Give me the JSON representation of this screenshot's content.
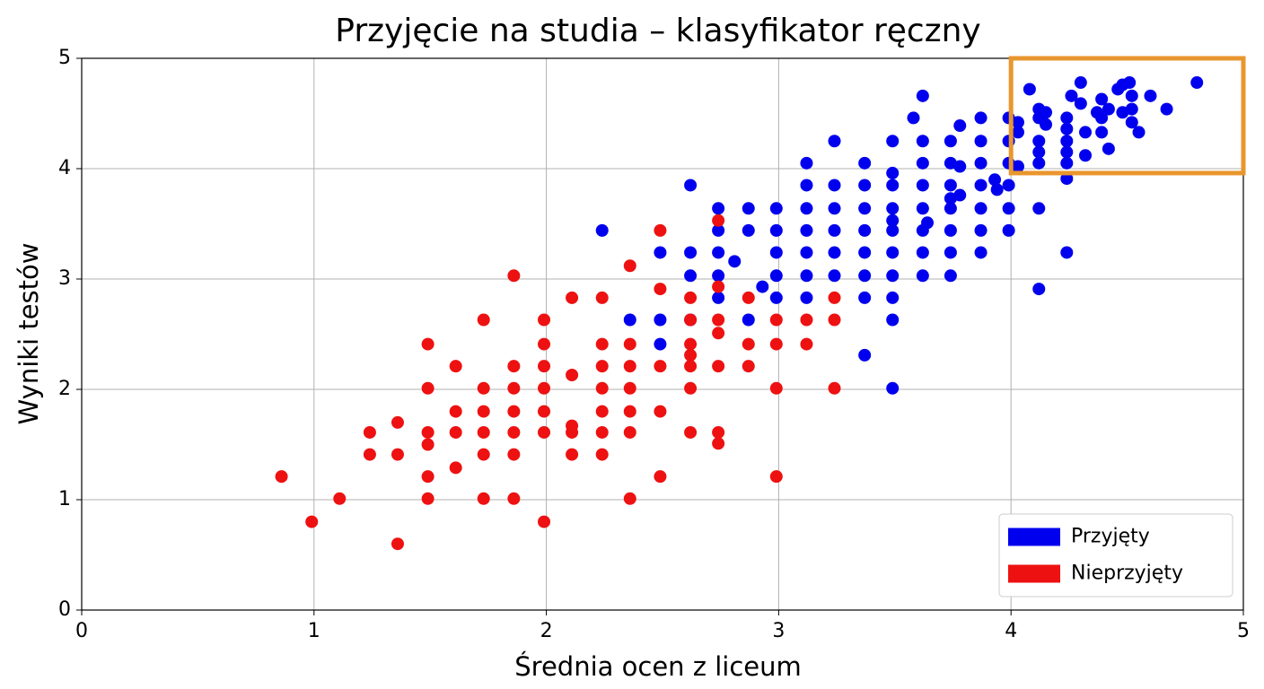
{
  "chart_data": {
    "type": "scatter",
    "title": "Przyjęcie na studia – klasyfikator ręczny",
    "x_label": "Średnia ocen z liceum",
    "y_label": "Wyniki testów",
    "xlim": [
      0,
      5
    ],
    "ylim": [
      0,
      5
    ],
    "xticks": [
      0,
      1,
      2,
      3,
      4,
      5
    ],
    "yticks": [
      0,
      1,
      2,
      3,
      4,
      5
    ],
    "grid": true,
    "legend": "lower right",
    "highlight_box": {
      "x": [
        4,
        5
      ],
      "y": [
        3.96,
        5
      ],
      "color": "#e8962e"
    },
    "series": [
      {
        "name": "Przyjęty",
        "color": "#0000ee",
        "x": [
          2.24,
          2.36,
          2.49,
          2.49,
          2.49,
          2.62,
          2.62,
          2.62,
          2.62,
          2.74,
          2.74,
          2.74,
          2.74,
          2.74,
          2.81,
          2.87,
          2.87,
          2.87,
          2.93,
          2.99,
          2.99,
          2.99,
          2.99,
          2.99,
          3.12,
          3.12,
          3.12,
          3.12,
          3.12,
          3.12,
          3.12,
          3.24,
          3.24,
          3.24,
          3.24,
          3.24,
          3.24,
          3.37,
          3.37,
          3.37,
          3.37,
          3.37,
          3.37,
          3.37,
          3.37,
          3.49,
          3.49,
          3.49,
          3.49,
          3.49,
          3.49,
          3.49,
          3.49,
          3.49,
          3.49,
          3.49,
          3.58,
          3.62,
          3.62,
          3.62,
          3.62,
          3.62,
          3.62,
          3.62,
          3.62,
          3.64,
          3.74,
          3.74,
          3.74,
          3.74,
          3.74,
          3.74,
          3.74,
          3.74,
          3.78,
          3.78,
          3.78,
          3.87,
          3.87,
          3.87,
          3.87,
          3.87,
          3.87,
          3.87,
          3.93,
          3.94,
          3.99,
          3.99,
          3.99,
          3.99,
          3.99,
          3.99,
          4.03,
          4.03,
          4.03,
          4.08,
          4.12,
          4.12,
          4.12,
          4.12,
          4.12,
          4.12,
          4.12,
          4.15,
          4.15,
          4.24,
          4.24,
          4.24,
          4.24,
          4.24,
          4.24,
          4.24,
          4.26,
          4.3,
          4.3,
          4.32,
          4.32,
          4.37,
          4.39,
          4.39,
          4.39,
          4.42,
          4.42,
          4.46,
          4.48,
          4.48,
          4.51,
          4.52,
          4.52,
          4.52,
          4.55,
          4.6,
          4.67,
          4.8
        ],
        "y": [
          3.44,
          2.63,
          3.24,
          2.63,
          2.41,
          3.85,
          3.24,
          3.03,
          2.63,
          3.64,
          3.44,
          3.24,
          3.03,
          2.83,
          3.16,
          3.64,
          3.44,
          2.63,
          2.93,
          3.64,
          3.44,
          3.24,
          3.03,
          2.83,
          4.05,
          3.85,
          3.64,
          3.44,
          3.24,
          3.03,
          2.83,
          4.25,
          3.85,
          3.64,
          3.44,
          3.24,
          3.03,
          4.05,
          3.85,
          3.64,
          3.44,
          3.24,
          3.03,
          2.83,
          2.31,
          4.25,
          3.96,
          3.85,
          3.64,
          3.53,
          3.44,
          3.24,
          3.03,
          2.83,
          2.63,
          2.01,
          4.46,
          4.66,
          4.25,
          4.05,
          3.85,
          3.64,
          3.44,
          3.24,
          3.03,
          3.51,
          4.25,
          4.05,
          3.85,
          3.73,
          3.64,
          3.44,
          3.24,
          3.03,
          4.39,
          4.02,
          3.76,
          4.46,
          4.25,
          4.05,
          3.85,
          3.64,
          3.44,
          3.24,
          3.9,
          3.81,
          4.46,
          4.25,
          4.05,
          3.85,
          3.64,
          3.44,
          4.42,
          4.33,
          4.02,
          4.72,
          4.54,
          4.46,
          4.25,
          4.15,
          4.05,
          3.64,
          2.91,
          4.51,
          4.4,
          4.46,
          4.36,
          4.25,
          4.15,
          4.05,
          3.91,
          3.24,
          4.66,
          4.78,
          4.59,
          4.33,
          4.12,
          4.51,
          4.63,
          4.46,
          4.33,
          4.54,
          4.18,
          4.72,
          4.76,
          4.51,
          4.78,
          4.66,
          4.54,
          4.42,
          4.33,
          4.66,
          4.54,
          4.78
        ]
      },
      {
        "name": "Nieprzyjęty",
        "color": "#ee1111",
        "x": [
          0.86,
          0.99,
          1.11,
          1.24,
          1.24,
          1.36,
          1.36,
          1.36,
          1.49,
          1.49,
          1.49,
          1.49,
          1.49,
          1.49,
          1.61,
          1.61,
          1.61,
          1.61,
          1.73,
          1.73,
          1.73,
          1.73,
          1.73,
          1.73,
          1.86,
          1.86,
          1.86,
          1.86,
          1.86,
          1.86,
          1.86,
          1.99,
          1.99,
          1.99,
          1.99,
          1.99,
          1.99,
          1.99,
          2.11,
          2.11,
          2.11,
          2.11,
          2.11,
          2.24,
          2.24,
          2.24,
          2.24,
          2.24,
          2.24,
          2.24,
          2.36,
          2.36,
          2.36,
          2.36,
          2.36,
          2.36,
          2.36,
          2.49,
          2.49,
          2.49,
          2.49,
          2.49,
          2.62,
          2.62,
          2.62,
          2.62,
          2.62,
          2.62,
          2.62,
          2.74,
          2.74,
          2.74,
          2.74,
          2.74,
          2.74,
          2.74,
          2.87,
          2.87,
          2.87,
          2.99,
          2.99,
          2.99,
          2.99,
          3.12,
          3.12,
          3.24,
          3.24,
          3.24
        ],
        "y": [
          1.21,
          0.8,
          1.01,
          1.61,
          1.41,
          1.7,
          1.41,
          0.6,
          2.41,
          2.01,
          1.61,
          1.5,
          1.21,
          1.01,
          2.21,
          1.8,
          1.61,
          1.29,
          2.63,
          2.01,
          1.8,
          1.61,
          1.41,
          1.01,
          3.03,
          2.21,
          2.01,
          1.8,
          1.61,
          1.41,
          1.01,
          2.63,
          2.41,
          2.21,
          2.01,
          1.8,
          1.61,
          0.8,
          2.83,
          2.13,
          1.67,
          1.61,
          1.41,
          2.83,
          2.41,
          2.21,
          2.01,
          1.8,
          1.61,
          1.41,
          3.12,
          2.41,
          2.21,
          2.01,
          1.8,
          1.61,
          1.01,
          3.44,
          2.91,
          2.21,
          1.8,
          1.21,
          2.83,
          2.63,
          2.41,
          2.31,
          2.21,
          2.01,
          1.61,
          3.53,
          2.93,
          2.63,
          2.51,
          2.21,
          1.61,
          1.51,
          2.83,
          2.41,
          2.21,
          2.63,
          2.41,
          2.01,
          1.21,
          2.63,
          2.41,
          2.83,
          2.63,
          2.01
        ]
      }
    ]
  }
}
